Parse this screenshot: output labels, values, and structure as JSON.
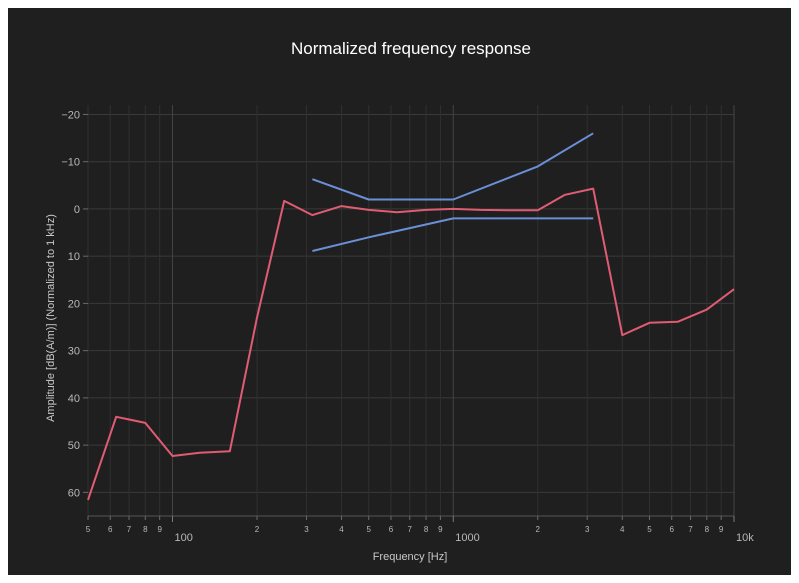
{
  "chart_data": {
    "type": "line",
    "title": "Normalized frequency response",
    "xlabel": "Frequency [Hz]",
    "ylabel": "Amplitude [dB(A/m)] (Normalized to 1 kHz)",
    "x_scale": "log",
    "xlim": [
      50,
      10000
    ],
    "ylim": [
      65,
      -22
    ],
    "y_reversed": true,
    "grid": true,
    "background": "#1f1f1f",
    "y_ticks": [
      "−20",
      "−10",
      "0",
      "10",
      "20",
      "30",
      "40",
      "50",
      "60"
    ],
    "y_tick_values": [
      -20,
      -10,
      0,
      10,
      20,
      30,
      40,
      50,
      60
    ],
    "x_major_ticks": [
      {
        "value": 100,
        "label": "100"
      },
      {
        "value": 1000,
        "label": "1000"
      },
      {
        "value": 10000,
        "label": "10k"
      }
    ],
    "x_minor_ticks": [
      {
        "value": 50,
        "label": "5"
      },
      {
        "value": 60,
        "label": "6"
      },
      {
        "value": 70,
        "label": "7"
      },
      {
        "value": 80,
        "label": "8"
      },
      {
        "value": 90,
        "label": "9"
      },
      {
        "value": 200,
        "label": "2"
      },
      {
        "value": 300,
        "label": "3"
      },
      {
        "value": 400,
        "label": "4"
      },
      {
        "value": 500,
        "label": "5"
      },
      {
        "value": 600,
        "label": "6"
      },
      {
        "value": 700,
        "label": "7"
      },
      {
        "value": 800,
        "label": "8"
      },
      {
        "value": 900,
        "label": "9"
      },
      {
        "value": 2000,
        "label": "2"
      },
      {
        "value": 3000,
        "label": "3"
      },
      {
        "value": 4000,
        "label": "4"
      },
      {
        "value": 5000,
        "label": "5"
      },
      {
        "value": 6000,
        "label": "6"
      },
      {
        "value": 7000,
        "label": "7"
      },
      {
        "value": 8000,
        "label": "8"
      },
      {
        "value": 9000,
        "label": "9"
      }
    ],
    "series": [
      {
        "color": "#e05c72",
        "x": [
          50,
          63,
          80,
          100,
          125,
          160,
          200,
          250,
          315,
          400,
          500,
          630,
          800,
          1000,
          1250,
          1600,
          2000,
          2500,
          3150,
          4000,
          5000,
          6300,
          8000,
          10000
        ],
        "y": [
          61.6,
          44.0,
          45.3,
          52.3,
          51.6,
          51.3,
          23.0,
          -1.7,
          1.3,
          -0.6,
          0.2,
          0.7,
          0.2,
          0.0,
          0.2,
          0.3,
          0.3,
          -3.0,
          -4.3,
          26.7,
          24.1,
          23.9,
          21.3,
          17.0
        ]
      },
      {
        "color": "#6b8fd6",
        "x": [
          315,
          500,
          1000,
          2000,
          3150
        ],
        "y": [
          -6.3,
          -2.0,
          -2.0,
          -9.0,
          -16.0
        ]
      },
      {
        "color": "#6b8fd6",
        "x": [
          315,
          500,
          1000,
          2000,
          3150
        ],
        "y": [
          8.9,
          6.0,
          2.0,
          2.0,
          2.0
        ]
      }
    ]
  }
}
